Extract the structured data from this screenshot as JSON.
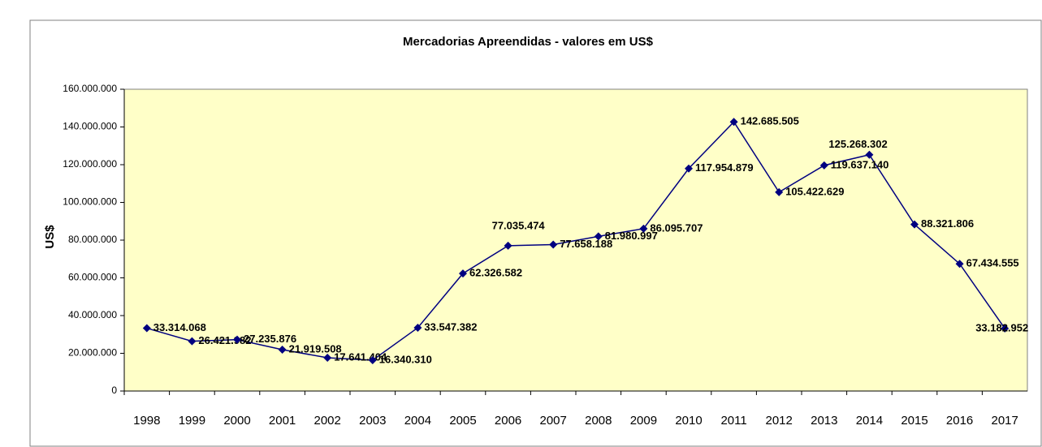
{
  "chart_data": {
    "type": "line",
    "title": "Mercadorias Apreendidas - valores em US$",
    "y_label": "US$",
    "categories": [
      "1998",
      "1999",
      "2000",
      "2001",
      "2002",
      "2003",
      "2004",
      "2005",
      "2006",
      "2007",
      "2008",
      "2009",
      "2010",
      "2011",
      "2012",
      "2013",
      "2014",
      "2015",
      "2016",
      "2017"
    ],
    "series": [
      {
        "name": "US$",
        "color": "#000080",
        "values": [
          33314068,
          26421982,
          27235876,
          21919508,
          17641404,
          16340310,
          33547382,
          62326582,
          77035474,
          77658188,
          81980997,
          86095707,
          117954879,
          142685505,
          105422629,
          119637140,
          125268302,
          88321806,
          67434555,
          33182952
        ],
        "value_labels": [
          "33.314.068",
          "26.421.982",
          "27.235.876",
          "21.919.508",
          "17.641.404",
          "16.340.310",
          "33.547.382",
          "62.326.582",
          "77.035.474",
          "77.658.188",
          "81.980.997",
          "86.095.707",
          "117.954.879",
          "142.685.505",
          "105.422.629",
          "119.637.140",
          "125.268.302",
          "88.321.806",
          "67.434.555",
          "33.182.952"
        ]
      }
    ],
    "ylim": [
      0,
      160000000
    ],
    "yticks": [
      0,
      {
        "value": 20000000,
        "label": "20.000.000"
      },
      {
        "value": 40000000,
        "label": "40.000.000"
      },
      {
        "value": 60000000,
        "label": "60.000.000"
      },
      {
        "value": 80000000,
        "label": "80.000.000"
      },
      {
        "value": 100000000,
        "label": "100.000.000"
      },
      {
        "value": 120000000,
        "label": "120.000.000"
      },
      {
        "value": 140000000,
        "label": "140.000.000"
      },
      {
        "value": 160000000,
        "label": "160.000.000"
      }
    ],
    "grid": false
  }
}
